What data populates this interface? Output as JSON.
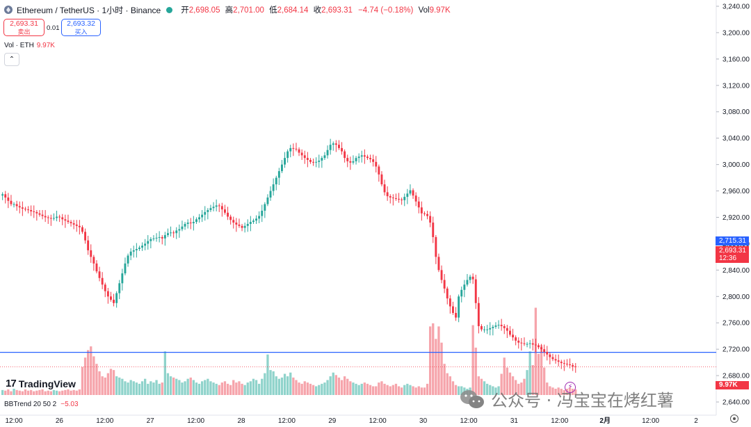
{
  "header": {
    "symbol": "Ethereum / TetherUS · 1小时 · Binance",
    "open_label": "开",
    "open": "2,698.05",
    "high_label": "高",
    "high": "2,701.00",
    "low_label": "低",
    "low": "2,684.14",
    "close_label": "收",
    "close": "2,693.31",
    "change": "−4.74 (−0.18%)",
    "vol_label": "Vol",
    "vol": "9.97K"
  },
  "trade": {
    "sell_price": "2,693.31",
    "sell_label": "卖出",
    "spread": "0.01",
    "buy_price": "2,693.32",
    "buy_label": "买入"
  },
  "volume_legend": {
    "label": "Vol · ETH",
    "value": "9.97K"
  },
  "collapse_icon": "chevron-up-icon",
  "bb_legend": {
    "label": "BBTrend 20 50 2",
    "value": "−5.03"
  },
  "logo_text": "TradingView",
  "watermark": "公众号 · 冯宝宝在烤红薯",
  "price_tags": {
    "line": "2,715.31",
    "last": "2,693.31",
    "countdown": "12:36",
    "volume": "9.97K"
  },
  "colors": {
    "up": "#26a69a",
    "down": "#f23645",
    "line": "#2962ff",
    "vol_up": "#8fd3cb",
    "vol_down": "#f6a4ab"
  },
  "chart_data": {
    "type": "candlestick",
    "symbol": "ETH/USDT",
    "interval": "1h",
    "ylim": [
      2620,
      3240
    ],
    "y_ticks": [
      2640,
      2680,
      2720,
      2760,
      2800,
      2840,
      2880,
      2920,
      2960,
      3000,
      3040,
      3080,
      3120,
      3160,
      3200,
      3240
    ],
    "x_ticks": [
      "12:00",
      "26",
      "12:00",
      "27",
      "12:00",
      "28",
      "12:00",
      "29",
      "12:00",
      "30",
      "12:00",
      "31",
      "12:00",
      "2月",
      "12:00",
      "2"
    ],
    "horizontal_line": 2715.31,
    "last_price": 2693.31,
    "closes": [
      2955,
      2950,
      2945,
      2940,
      2940,
      2937,
      2935,
      2933,
      2932,
      2931,
      2929,
      2928,
      2926,
      2924,
      2922,
      2920,
      2919,
      2918,
      2919,
      2921,
      2920,
      2917,
      2915,
      2913,
      2911,
      2909,
      2907,
      2905,
      2898,
      2885,
      2870,
      2860,
      2850,
      2838,
      2828,
      2818,
      2808,
      2800,
      2795,
      2790,
      2805,
      2820,
      2835,
      2850,
      2862,
      2868,
      2870,
      2872,
      2874,
      2877,
      2880,
      2884,
      2887,
      2888,
      2889,
      2890,
      2888,
      2893,
      2896,
      2897,
      2896,
      2900,
      2902,
      2906,
      2910,
      2912,
      2911,
      2913,
      2917,
      2920,
      2924,
      2928,
      2931,
      2934,
      2936,
      2938,
      2937,
      2932,
      2927,
      2921,
      2916,
      2912,
      2909,
      2907,
      2904,
      2907,
      2910,
      2913,
      2915,
      2918,
      2922,
      2930,
      2940,
      2950,
      2960,
      2970,
      2980,
      2990,
      3000,
      3010,
      3020,
      3025,
      3024,
      3023,
      3018,
      3014,
      3010,
      3007,
      3004,
      3003,
      3004,
      3006,
      3010,
      3014,
      3022,
      3030,
      3032,
      3030,
      3025,
      3020,
      3010,
      3005,
      3003,
      3005,
      3010,
      3012,
      3014,
      3012,
      3010,
      3008,
      3004,
      2997,
      2985,
      2970,
      2958,
      2952,
      2950,
      2949,
      2948,
      2947,
      2946,
      2951,
      2956,
      2961,
      2953,
      2944,
      2935,
      2926,
      2925,
      2922,
      2912,
      2890,
      2860,
      2840,
      2825,
      2812,
      2797,
      2785,
      2775,
      2768,
      2800,
      2810,
      2818,
      2825,
      2830,
      2826,
      2790,
      2755,
      2750,
      2750,
      2750,
      2752,
      2754,
      2756,
      2757,
      2755,
      2752,
      2748,
      2742,
      2738,
      2733,
      2730,
      2729,
      2728,
      2728,
      2729,
      2727,
      2726,
      2723,
      2720,
      2716,
      2712,
      2708,
      2705,
      2703,
      2701,
      2699,
      2698,
      2697,
      2696,
      2694,
      2693.31
    ]
  }
}
